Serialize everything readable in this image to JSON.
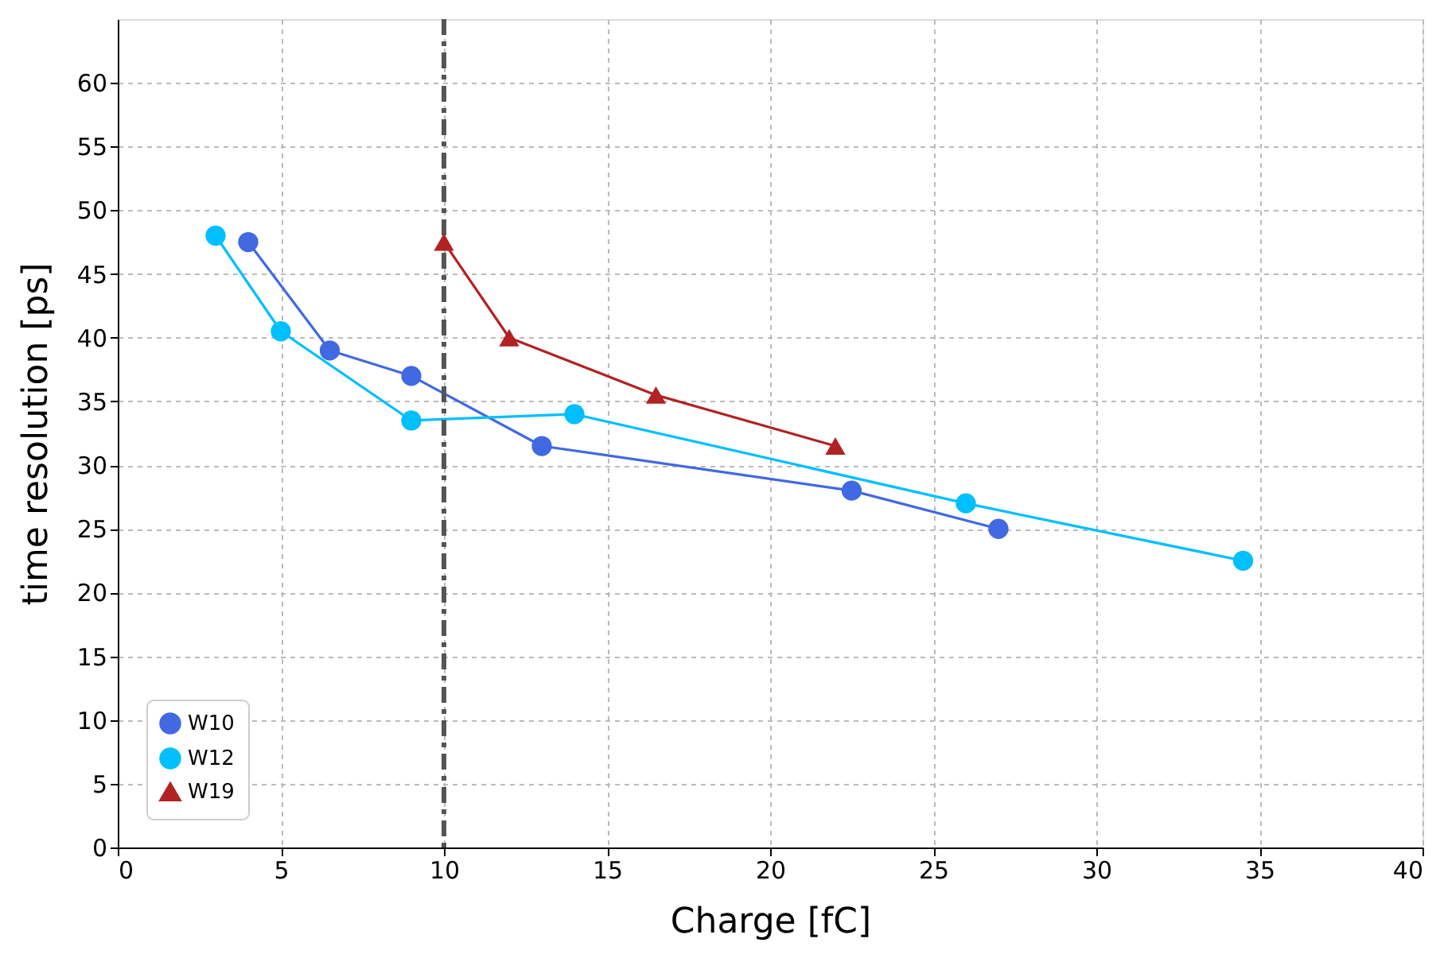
{
  "chart_data": {
    "type": "line",
    "xlabel": "Charge [fC]",
    "ylabel": "time resolution [ps]",
    "xlim": [
      0,
      40
    ],
    "xticks": [
      0,
      5,
      10,
      15,
      20,
      25,
      30,
      35,
      40
    ],
    "ylim": [
      0,
      65
    ],
    "yticks": [
      0,
      5,
      10,
      15,
      20,
      25,
      30,
      35,
      40,
      45,
      50,
      55,
      60
    ],
    "grid": true,
    "legend": "bottom left",
    "series": [
      {
        "name": "W10",
        "color": "#4169e1",
        "marker": "circle",
        "x": [
          4,
          6.5,
          9,
          13,
          22.5,
          27
        ],
        "values": [
          47.5,
          39,
          37,
          31.5,
          28,
          25
        ]
      },
      {
        "name": "W12",
        "color": "#00bfff",
        "marker": "circle",
        "x": [
          3,
          5,
          9,
          14,
          26,
          34.5
        ],
        "values": [
          48,
          40.5,
          33.5,
          34,
          27,
          22.5
        ]
      },
      {
        "name": "W19",
        "color": "#b22222",
        "marker": "triangle",
        "x": [
          10,
          12,
          16.5,
          22
        ],
        "values": [
          47.5,
          40,
          35.5,
          31.5
        ]
      }
    ],
    "ref_lines": [
      {
        "axis": "x",
        "value": 10,
        "color": "#555555",
        "line_style": "dashdot"
      }
    ]
  }
}
